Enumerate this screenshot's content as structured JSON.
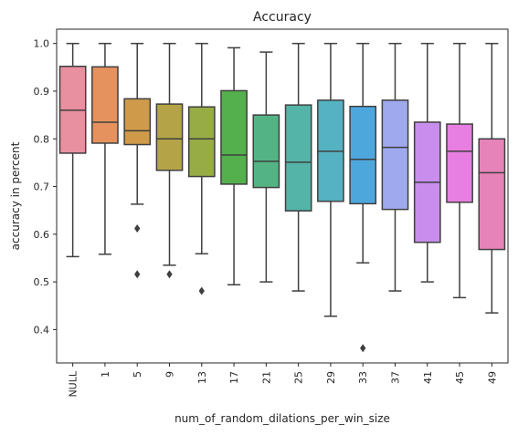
{
  "chart_data": {
    "type": "box",
    "title": "Accuracy",
    "xlabel": "num_of_random_dilations_per_win_size",
    "ylabel": "accuracy in percent",
    "ylim": [
      0.33,
      1.03
    ],
    "yticks": [
      0.4,
      0.5,
      0.6,
      0.7,
      0.8,
      0.9,
      1.0
    ],
    "grid": false,
    "legend": "none",
    "boxes": [
      {
        "label": "NULL",
        "color": "#e8909f",
        "whisker_low": 0.553,
        "q1": 0.77,
        "median": 0.86,
        "q3": 0.952,
        "whisker_high": 1.0,
        "outliers": []
      },
      {
        "label": "1",
        "color": "#e5925f",
        "whisker_low": 0.558,
        "q1": 0.791,
        "median": 0.835,
        "q3": 0.951,
        "whisker_high": 1.0,
        "outliers": []
      },
      {
        "label": "5",
        "color": "#cf9a4a",
        "whisker_low": 0.663,
        "q1": 0.788,
        "median": 0.817,
        "q3": 0.884,
        "whisker_high": 1.0,
        "outliers": [
          0.612,
          0.516
        ]
      },
      {
        "label": "9",
        "color": "#b5a447",
        "whisker_low": 0.535,
        "q1": 0.734,
        "median": 0.8,
        "q3": 0.873,
        "whisker_high": 1.0,
        "outliers": [
          0.516
        ]
      },
      {
        "label": "13",
        "color": "#98ac45",
        "whisker_low": 0.559,
        "q1": 0.721,
        "median": 0.8,
        "q3": 0.867,
        "whisker_high": 1.0,
        "outliers": [
          0.481
        ]
      },
      {
        "label": "17",
        "color": "#54b04c",
        "whisker_low": 0.494,
        "q1": 0.705,
        "median": 0.766,
        "q3": 0.901,
        "whisker_high": 0.991,
        "outliers": []
      },
      {
        "label": "21",
        "color": "#54b384",
        "whisker_low": 0.5,
        "q1": 0.698,
        "median": 0.753,
        "q3": 0.85,
        "whisker_high": 0.982,
        "outliers": []
      },
      {
        "label": "25",
        "color": "#53b4a7",
        "whisker_low": 0.481,
        "q1": 0.649,
        "median": 0.751,
        "q3": 0.871,
        "whisker_high": 1.0,
        "outliers": []
      },
      {
        "label": "29",
        "color": "#55b2c2",
        "whisker_low": 0.428,
        "q1": 0.669,
        "median": 0.774,
        "q3": 0.881,
        "whisker_high": 1.0,
        "outliers": []
      },
      {
        "label": "33",
        "color": "#4ea7dc",
        "whisker_low": 0.54,
        "q1": 0.664,
        "median": 0.757,
        "q3": 0.868,
        "whisker_high": 1.0,
        "outliers": [
          0.361
        ]
      },
      {
        "label": "37",
        "color": "#9ea9ee",
        "whisker_low": 0.481,
        "q1": 0.652,
        "median": 0.782,
        "q3": 0.881,
        "whisker_high": 1.0,
        "outliers": []
      },
      {
        "label": "41",
        "color": "#c88ded",
        "whisker_low": 0.5,
        "q1": 0.583,
        "median": 0.709,
        "q3": 0.835,
        "whisker_high": 1.0,
        "outliers": []
      },
      {
        "label": "45",
        "color": "#e77ee1",
        "whisker_low": 0.467,
        "q1": 0.667,
        "median": 0.774,
        "q3": 0.831,
        "whisker_high": 1.0,
        "outliers": []
      },
      {
        "label": "49",
        "color": "#e683b9",
        "whisker_low": 0.435,
        "q1": 0.568,
        "median": 0.729,
        "q3": 0.8,
        "whisker_high": 1.0,
        "outliers": []
      }
    ]
  }
}
